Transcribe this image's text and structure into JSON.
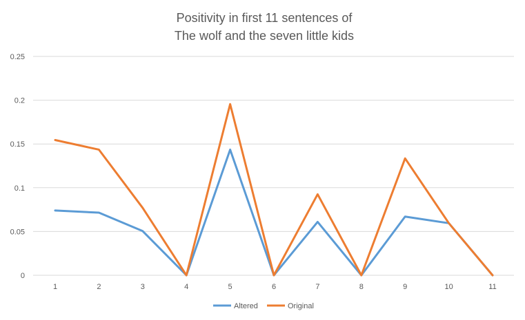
{
  "chart_data": {
    "type": "line",
    "title_lines": [
      "Positivity in first 11 sentences of",
      "The wolf and the seven little kids"
    ],
    "xlabel": "",
    "ylabel": "",
    "categories": [
      "1",
      "2",
      "3",
      "4",
      "5",
      "6",
      "7",
      "8",
      "9",
      "10",
      "11"
    ],
    "ylim": [
      0,
      0.25
    ],
    "yticks": [
      0,
      0.05,
      0.1,
      0.15,
      0.2,
      0.25
    ],
    "ytick_labels": [
      "0",
      "0.05",
      "0.1",
      "0.15",
      "0.2",
      "0.25"
    ],
    "grid": true,
    "legend_position": "bottom",
    "series": [
      {
        "name": "Altered",
        "color": "#5b9bd5",
        "values": [
          0.074,
          0.0715,
          0.0505,
          0.0,
          0.1435,
          0.0,
          0.061,
          0.0,
          0.067,
          0.0595,
          0.0
        ]
      },
      {
        "name": "Original",
        "color": "#ed7d31",
        "values": [
          0.1545,
          0.1435,
          0.077,
          0.0,
          0.1955,
          0.0,
          0.0925,
          0.0,
          0.1335,
          0.0595,
          0.0
        ]
      }
    ]
  }
}
